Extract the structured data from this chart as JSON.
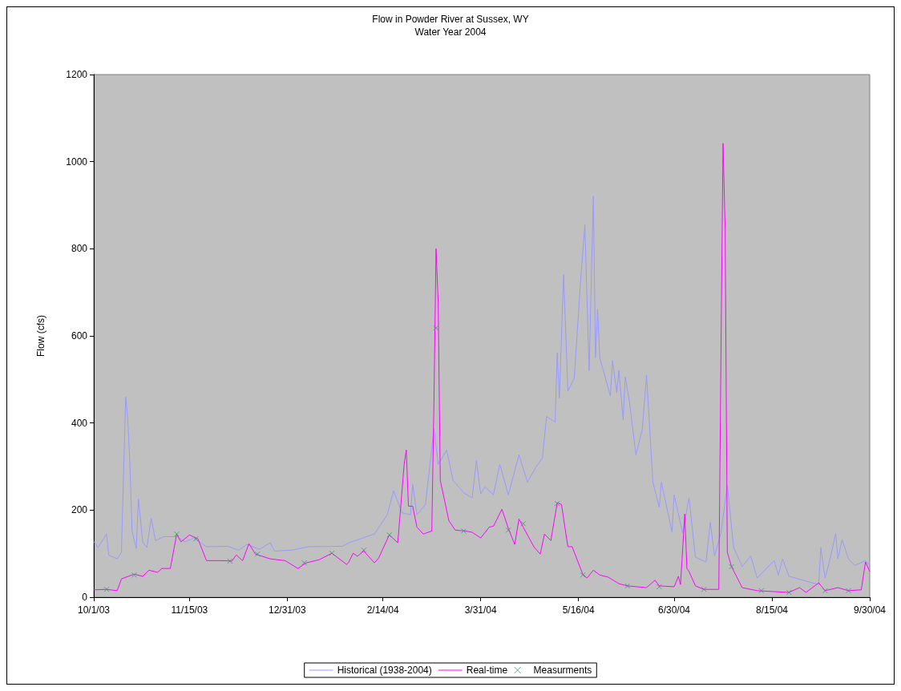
{
  "chart_data": {
    "type": "line",
    "title": "Flow in Powder River at Sussex, WY",
    "subtitle": "Water Year 2004",
    "ylabel": "Flow (cfs)",
    "xlim": [
      "2003-10-01",
      "2004-09-30"
    ],
    "xticks": [
      {
        "value": "2003-10-01",
        "label": "10/1/03"
      },
      {
        "value": "2003-11-15",
        "label": "11/15/03"
      },
      {
        "value": "2003-12-31",
        "label": "12/31/03"
      },
      {
        "value": "2004-02-14",
        "label": "2/14/04"
      },
      {
        "value": "2004-03-31",
        "label": "3/31/04"
      },
      {
        "value": "2004-05-16",
        "label": "5/16/04"
      },
      {
        "value": "2004-06-30",
        "label": "6/30/04"
      },
      {
        "value": "2004-08-15",
        "label": "8/15/04"
      },
      {
        "value": "2004-09-30",
        "label": "9/30/04"
      }
    ],
    "ylim": [
      0,
      1200
    ],
    "yticks": [
      0,
      200,
      400,
      600,
      800,
      1000,
      1200
    ],
    "grid": false,
    "legend": "bottom",
    "series": [
      {
        "name": "Historical (1938-2004)",
        "marker": "none",
        "color": "#9999ff",
        "x": [
          "2003-10-01",
          "2003-10-03",
          "2003-10-07",
          "2003-10-08",
          "2003-10-12",
          "2003-10-14",
          "2003-10-16",
          "2003-10-17",
          "2003-10-18",
          "2003-10-19",
          "2003-10-21",
          "2003-10-22",
          "2003-10-24",
          "2003-10-26",
          "2003-10-28",
          "2003-10-30",
          "2003-11-03",
          "2003-11-09",
          "2003-11-13",
          "2003-11-17",
          "2003-11-23",
          "2003-12-03",
          "2003-12-08",
          "2003-12-12",
          "2003-12-18",
          "2003-12-23",
          "2003-12-25",
          "2004-01-02",
          "2004-01-10",
          "2004-01-26",
          "2004-01-29",
          "2004-02-10",
          "2004-02-16",
          "2004-02-19",
          "2004-02-23",
          "2004-02-27",
          "2004-02-28",
          "2004-03-01",
          "2004-03-05",
          "2004-03-09",
          "2004-03-11",
          "2004-03-15",
          "2004-03-18",
          "2004-03-23",
          "2004-03-27",
          "2004-03-29",
          "2004-03-31",
          "2004-04-02",
          "2004-04-06",
          "2004-04-09",
          "2004-04-13",
          "2004-04-18",
          "2004-04-22",
          "2004-04-26",
          "2004-04-29",
          "2004-05-01",
          "2004-05-05",
          "2004-05-06",
          "2004-05-07",
          "2004-05-09",
          "2004-05-11",
          "2004-05-14",
          "2004-05-17",
          "2004-05-19",
          "2004-05-21",
          "2004-05-23",
          "2004-05-24",
          "2004-05-25",
          "2004-05-26",
          "2004-05-31",
          "2004-06-01",
          "2004-06-03",
          "2004-06-04",
          "2004-06-06",
          "2004-06-07",
          "2004-06-09",
          "2004-06-12",
          "2004-06-15",
          "2004-06-17",
          "2004-06-20",
          "2004-06-23",
          "2004-06-24",
          "2004-06-29",
          "2004-06-30",
          "2004-07-04",
          "2004-07-07",
          "2004-07-10",
          "2004-07-15",
          "2004-07-17",
          "2004-07-19",
          "2004-07-22",
          "2004-07-25",
          "2004-07-28",
          "2004-08-01",
          "2004-08-05",
          "2004-08-08",
          "2004-08-16",
          "2004-08-18",
          "2004-08-20",
          "2004-08-23",
          "2004-08-31",
          "2004-09-06",
          "2004-09-07",
          "2004-09-09",
          "2004-09-11",
          "2004-09-14",
          "2004-09-15",
          "2004-09-17",
          "2004-09-20",
          "2004-09-23",
          "2004-09-28",
          "2004-09-30"
        ],
        "values": [
          128,
          114,
          145,
          97,
          88,
          103,
          460,
          409,
          305,
          152,
          112,
          226,
          127,
          114,
          182,
          130,
          139,
          139,
          127,
          136,
          116,
          117,
          108,
          121,
          110,
          125,
          106,
          108,
          116,
          117,
          125,
          145,
          189,
          244,
          194,
          189,
          259,
          189,
          213,
          387,
          305,
          338,
          268,
          240,
          228,
          314,
          237,
          253,
          235,
          305,
          235,
          327,
          264,
          299,
          319,
          415,
          402,
          561,
          457,
          741,
          473,
          503,
          727,
          855,
          520,
          921,
          550,
          661,
          550,
          462,
          543,
          470,
          521,
          407,
          506,
          448,
          327,
          385,
          510,
          264,
          206,
          264,
          150,
          235,
          147,
          228,
          92,
          81,
          172,
          95,
          147,
          257,
          114,
          70,
          95,
          44,
          84,
          51,
          88,
          48,
          37,
          29,
          114,
          44,
          81,
          147,
          88,
          132,
          88,
          73,
          84,
          73
        ]
      },
      {
        "name": "Real-time",
        "marker": "none",
        "color": "#ff00ff",
        "x": [
          "2003-10-01",
          "2003-10-07",
          "2003-10-12",
          "2003-10-14",
          "2003-10-20",
          "2003-10-24",
          "2003-10-27",
          "2003-10-31",
          "2003-11-02",
          "2003-11-06",
          "2003-11-09",
          "2003-11-11",
          "2003-11-15",
          "2003-11-19",
          "2003-11-23",
          "2003-11-30",
          "2003-12-05",
          "2003-12-07",
          "2003-12-10",
          "2003-12-13",
          "2003-12-16",
          "2003-12-23",
          "2003-12-30",
          "2004-01-05",
          "2004-01-09",
          "2004-01-15",
          "2004-01-21",
          "2004-01-28",
          "2004-01-29",
          "2004-01-31",
          "2004-02-02",
          "2004-02-05",
          "2004-02-10",
          "2004-02-12",
          "2004-02-17",
          "2004-02-21",
          "2004-02-24",
          "2004-02-25",
          "2004-02-26",
          "2004-02-28",
          "2004-03-01",
          "2004-03-04",
          "2004-03-08",
          "2004-03-09",
          "2004-03-10",
          "2004-03-11",
          "2004-03-12",
          "2004-03-16",
          "2004-03-19",
          "2004-03-24",
          "2004-03-27",
          "2004-03-31",
          "2004-04-04",
          "2004-04-06",
          "2004-04-10",
          "2004-04-13",
          "2004-04-16",
          "2004-04-18",
          "2004-04-20",
          "2004-04-25",
          "2004-04-28",
          "2004-04-30",
          "2004-05-03",
          "2004-05-06",
          "2004-05-08",
          "2004-05-11",
          "2004-05-13",
          "2004-05-18",
          "2004-05-20",
          "2004-05-23",
          "2004-05-26",
          "2004-05-30",
          "2004-06-04",
          "2004-06-08",
          "2004-06-17",
          "2004-06-21",
          "2004-06-23",
          "2004-06-30",
          "2004-07-02",
          "2004-07-03",
          "2004-07-05",
          "2004-07-06",
          "2004-07-07",
          "2004-07-10",
          "2004-07-14",
          "2004-07-21",
          "2004-07-22",
          "2004-07-23",
          "2004-07-24",
          "2004-07-25",
          "2004-07-27",
          "2004-08-01",
          "2004-08-08",
          "2004-08-23",
          "2004-08-28",
          "2004-08-31",
          "2004-09-06",
          "2004-09-09",
          "2004-09-15",
          "2004-09-20",
          "2004-09-26",
          "2004-09-28",
          "2004-09-30"
        ],
        "values": [
          17,
          18,
          15,
          42,
          53,
          48,
          62,
          57,
          66,
          66,
          145,
          127,
          143,
          134,
          84,
          84,
          83,
          97,
          84,
          123,
          99,
          88,
          84,
          66,
          79,
          86,
          101,
          75,
          81,
          101,
          94,
          106,
          79,
          90,
          143,
          125,
          305,
          338,
          209,
          209,
          161,
          145,
          152,
          446,
          800,
          677,
          268,
          176,
          154,
          152,
          149,
          136,
          161,
          163,
          202,
          158,
          121,
          180,
          161,
          116,
          99,
          145,
          130,
          217,
          213,
          116,
          116,
          53,
          44,
          62,
          51,
          46,
          31,
          26,
          22,
          39,
          26,
          24,
          48,
          29,
          191,
          66,
          59,
          26,
          18,
          18,
          550,
          1042,
          844,
          103,
          70,
          22,
          15,
          11,
          22,
          11,
          33,
          15,
          22,
          15,
          17,
          81,
          59
        ]
      },
      {
        "name": "Measurments",
        "type": "scatter",
        "marker": "cross",
        "color": "#339966",
        "x": [
          "2003-10-07",
          "2003-10-20",
          "2003-11-09",
          "2003-11-18",
          "2003-12-04",
          "2003-12-17",
          "2004-01-08",
          "2004-01-21",
          "2004-02-05",
          "2004-02-17",
          "2004-03-10",
          "2004-03-23",
          "2004-04-13",
          "2004-04-20",
          "2004-05-06",
          "2004-05-18",
          "2004-06-08",
          "2004-06-23",
          "2004-07-14",
          "2004-07-27",
          "2004-08-10",
          "2004-08-23",
          "2004-09-09",
          "2004-09-20"
        ],
        "values": [
          18,
          51,
          145,
          134,
          83,
          99,
          79,
          101,
          108,
          143,
          618,
          152,
          154,
          169,
          215,
          51,
          26,
          24,
          18,
          70,
          15,
          11,
          15,
          15
        ]
      }
    ]
  }
}
